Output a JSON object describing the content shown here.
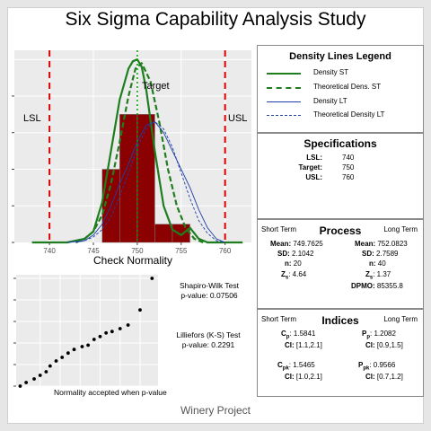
{
  "title": "Six Sigma Capability Analysis Study",
  "footer": "Winery Project",
  "colors": {
    "bar_fill": "#8b0000",
    "density_st": "#1e7e1e",
    "density_lt": "#1f3fa8",
    "limits": "#e00000",
    "target": "#00a000",
    "panel_bg": "#ebebeb"
  },
  "chart_data": [
    {
      "type": "bar",
      "title": "",
      "xlabel": "Check Normality",
      "xlim": [
        736,
        763
      ],
      "ylim": [
        0,
        1.05
      ],
      "x_ticks": [
        "740",
        "745",
        "750",
        "755",
        "760"
      ],
      "x_tick_values": [
        740,
        745,
        750,
        755,
        760
      ],
      "lsl": {
        "label": "LSL",
        "value": 740
      },
      "usl": {
        "label": "USL",
        "value": 760
      },
      "target": {
        "label": "Target",
        "value": 750
      },
      "histogram": {
        "bins": [
          [
            746,
            748
          ],
          [
            748,
            750
          ],
          [
            750,
            752
          ],
          [
            752,
            754
          ],
          [
            754,
            756
          ]
        ],
        "values": [
          0.4,
          0.7,
          0.7,
          0.1,
          0.1
        ]
      },
      "series": [
        {
          "name": "Density ST",
          "style": "solid",
          "x": [
            738,
            742,
            744,
            745,
            746,
            747,
            748,
            749,
            749.5,
            750,
            750.5,
            751,
            752,
            753,
            754,
            755,
            756,
            757,
            758,
            760,
            762
          ],
          "y": [
            0.0,
            0.0,
            0.02,
            0.06,
            0.22,
            0.5,
            0.78,
            0.95,
            0.99,
            1.0,
            0.96,
            0.84,
            0.5,
            0.2,
            0.07,
            0.04,
            0.08,
            0.02,
            0.0,
            0.0,
            0.0
          ]
        },
        {
          "name": "Theoretical Dens. ST",
          "style": "dashed",
          "x": [
            743,
            744,
            745,
            746,
            747,
            748,
            749,
            749.8,
            750.5,
            751.5,
            752.5,
            753.5,
            754.5,
            755.5,
            756.5,
            757.5
          ],
          "y": [
            0.0,
            0.02,
            0.06,
            0.15,
            0.32,
            0.55,
            0.8,
            0.95,
            0.98,
            0.88,
            0.66,
            0.4,
            0.2,
            0.08,
            0.02,
            0.0
          ]
        },
        {
          "name": "Density LT",
          "style": "solid",
          "x": [
            742,
            744,
            745,
            746,
            747,
            748,
            749,
            750,
            751,
            752,
            753,
            754,
            755,
            756,
            757,
            758,
            759,
            760
          ],
          "y": [
            0.0,
            0.01,
            0.04,
            0.1,
            0.2,
            0.32,
            0.43,
            0.55,
            0.64,
            0.66,
            0.6,
            0.5,
            0.4,
            0.3,
            0.18,
            0.08,
            0.02,
            0.0
          ]
        },
        {
          "name": "Theoretical Density LT",
          "style": "dashed",
          "x": [
            743,
            744,
            745,
            746,
            747,
            748,
            749,
            750,
            751,
            752,
            753,
            754,
            755,
            756,
            757,
            758,
            759,
            760
          ],
          "y": [
            0.0,
            0.01,
            0.03,
            0.07,
            0.14,
            0.25,
            0.38,
            0.52,
            0.62,
            0.66,
            0.62,
            0.52,
            0.38,
            0.24,
            0.12,
            0.05,
            0.01,
            0.0
          ]
        }
      ]
    },
    {
      "type": "scatter",
      "title": "",
      "note": "Normality accepted when p-value > 0.05",
      "points": [
        [
          1.0,
          0.0
        ],
        [
          1.3,
          0.5
        ],
        [
          1.7,
          1.0
        ],
        [
          2.0,
          1.5
        ],
        [
          2.3,
          2.0
        ],
        [
          2.5,
          2.8
        ],
        [
          2.8,
          3.5
        ],
        [
          3.1,
          4.0
        ],
        [
          3.4,
          4.6
        ],
        [
          3.7,
          5.1
        ],
        [
          4.1,
          5.5
        ],
        [
          4.4,
          5.7
        ],
        [
          4.7,
          6.5
        ],
        [
          5.0,
          6.9
        ],
        [
          5.3,
          7.4
        ],
        [
          5.6,
          7.6
        ],
        [
          6.0,
          8.0
        ],
        [
          6.4,
          8.5
        ],
        [
          7.0,
          10.6
        ],
        [
          7.6,
          15.0
        ]
      ],
      "ylim": [
        0,
        15.5
      ],
      "xlim": [
        0.8,
        7.9
      ]
    }
  ],
  "tests": {
    "shapiro_name": "Shapiro-Wilk Test",
    "shapiro_p": "p-value:  0.07506",
    "lillie_name": "Lilliefors (K-S) Test",
    "lillie_p": "p-value:  0.2291"
  },
  "legend": {
    "title": "Density Lines Legend",
    "items": [
      "Density ST",
      "Theoretical Dens. ST",
      "Density LT",
      "Theoretical Density LT"
    ]
  },
  "specs": {
    "title": "Specifications",
    "lsl_k": "LSL:",
    "lsl_v": "740",
    "target_k": "Target:",
    "target_v": "750",
    "usl_k": "USL:",
    "usl_v": "760"
  },
  "process": {
    "title": "Process",
    "short_term": "Short Term",
    "long_term": "Long Term",
    "st_mean_k": "Mean:",
    "st_mean_v": "749.7625",
    "st_sd_k": "SD:",
    "st_sd_v": "2.1042",
    "st_n_k": "n:",
    "st_n_v": "20",
    "st_z_k": "Z",
    "st_z_sub": "s",
    "st_z_v": ": 4.64",
    "lt_mean_k": "Mean:",
    "lt_mean_v": "752.0823",
    "lt_sd_k": "SD:",
    "lt_sd_v": "2.7589",
    "lt_n_k": "n:",
    "lt_n_v": "40",
    "lt_z_k": "Z",
    "lt_z_sub": "s",
    "lt_z_v": ": 1.37",
    "lt_dpmo_k": "DPMO:",
    "lt_dpmo_v": "85355.8"
  },
  "indices": {
    "title": "Indices",
    "short_term": "Short Term",
    "long_term": "Long Term",
    "cp_k": "C",
    "cp_sub": "p",
    "cp_v": ": 1.5841",
    "cp_ci_k": "CI:",
    "cp_ci_v": "[1.1,2.1]",
    "pp_k": "P",
    "pp_sub": "p",
    "pp_v": ": 1.2082",
    "pp_ci_k": "CI:",
    "pp_ci_v": "[0.9,1.5]",
    "cpk_k": "C",
    "cpk_sub": "pk",
    "cpk_v": ": 1.5465",
    "cpk_ci_k": "CI:",
    "cpk_ci_v": "[1.0,2.1]",
    "ppk_k": "P",
    "ppk_sub": "pk",
    "ppk_v": ": 0.9566",
    "ppk_ci_k": "CI:",
    "ppk_ci_v": "[0.7,1.2]"
  }
}
